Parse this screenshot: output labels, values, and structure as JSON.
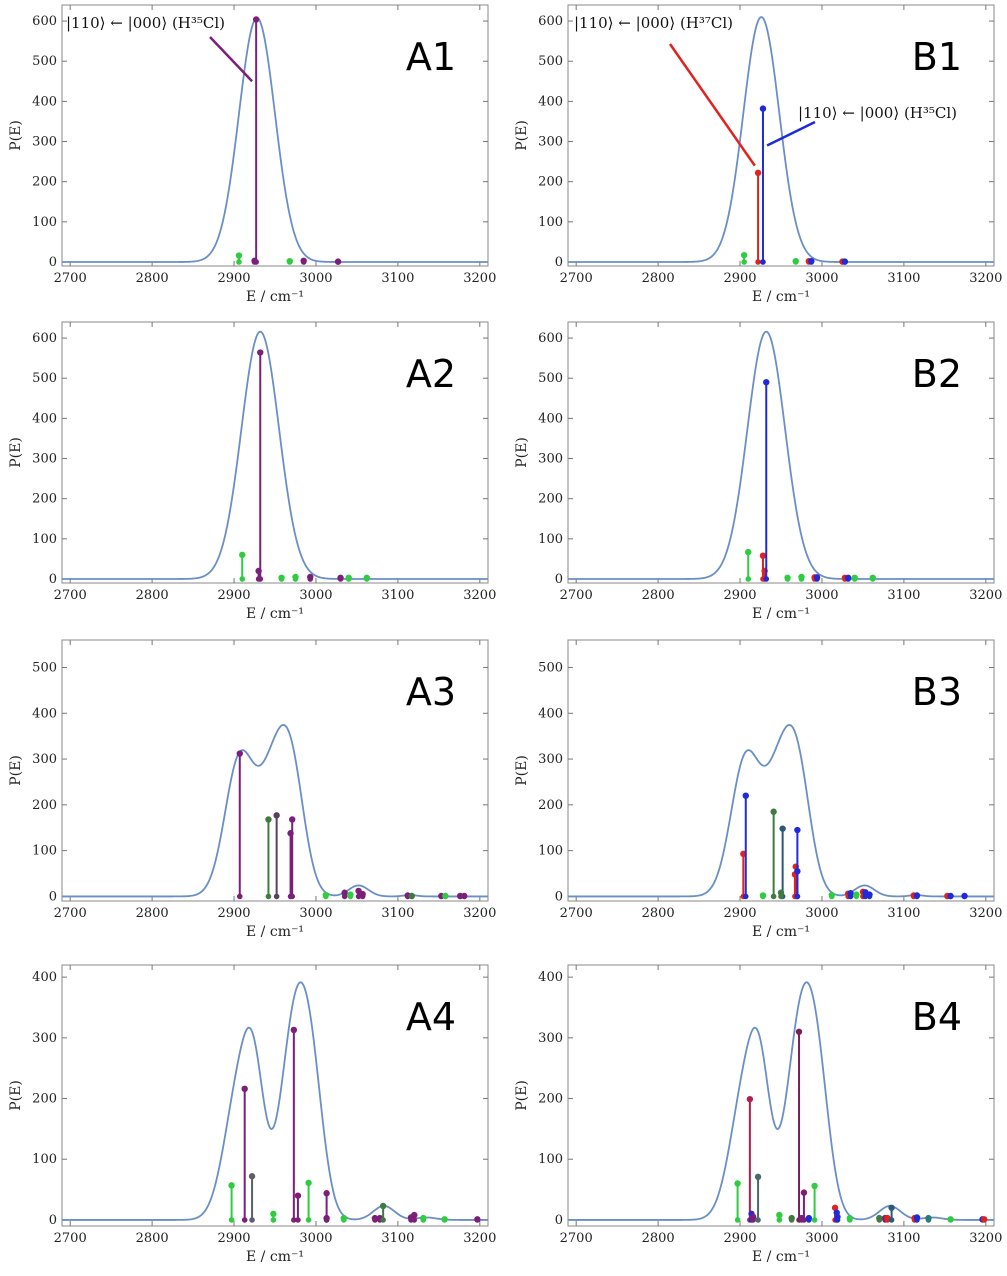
{
  "figure": {
    "description_free": true
  },
  "chart_data": [
    {
      "id": "A1",
      "type": "line",
      "title": "",
      "xlabel": "E / cm⁻¹",
      "ylabel": "P(E)",
      "xlim": [
        2690,
        3210
      ],
      "ylim": [
        -10,
        640
      ],
      "xticks": [
        2700,
        2800,
        2900,
        3000,
        3100,
        3200
      ],
      "yticks": [
        0,
        100,
        200,
        300,
        400,
        500,
        600
      ],
      "envelope": {
        "color": "#6a8fc6",
        "peaks": [
          {
            "center": 2928,
            "height": 608,
            "width": 22
          }
        ]
      },
      "sticks": [
        {
          "x": 2906,
          "y": 16,
          "color": "#2ecc40"
        },
        {
          "x": 2925,
          "y": 3,
          "color": "#7b1f7b"
        },
        {
          "x": 2927,
          "y": 604,
          "color": "#7b1f7b"
        },
        {
          "x": 2968,
          "y": 2,
          "color": "#2ecc40"
        },
        {
          "x": 2985,
          "y": 3,
          "color": "#7b1f7b"
        },
        {
          "x": 3027,
          "y": 1,
          "color": "#7b1f7b"
        }
      ],
      "annotations": [
        {
          "text": "|110⟩ ← |000⟩ (H³⁵Cl)",
          "color": "#7b1f7b",
          "point": [
            2922,
            450
          ]
        }
      ]
    },
    {
      "id": "B1",
      "type": "line",
      "title": "",
      "xlabel": "E / cm⁻¹",
      "ylabel": "P(E)",
      "xlim": [
        2690,
        3210
      ],
      "ylim": [
        -10,
        640
      ],
      "xticks": [
        2700,
        2800,
        2900,
        3000,
        3100,
        3200
      ],
      "yticks": [
        0,
        100,
        200,
        300,
        400,
        500,
        600
      ],
      "envelope": {
        "color": "#6a8fc6",
        "peaks": [
          {
            "center": 2926,
            "height": 610,
            "width": 22
          }
        ]
      },
      "sticks": [
        {
          "x": 2905,
          "y": 17,
          "color": "#2ecc40"
        },
        {
          "x": 2922,
          "y": 222,
          "color": "#e0231f"
        },
        {
          "x": 2928,
          "y": 382,
          "color": "#1f2bd6"
        },
        {
          "x": 2968,
          "y": 2,
          "color": "#2ecc40"
        },
        {
          "x": 2984,
          "y": 2,
          "color": "#e0231f"
        },
        {
          "x": 2987,
          "y": 2,
          "color": "#1f2bd6"
        },
        {
          "x": 3025,
          "y": 1,
          "color": "#e0231f"
        },
        {
          "x": 3028,
          "y": 1,
          "color": "#1f2bd6"
        }
      ],
      "annotations": [
        {
          "text": "|110⟩ ← |000⟩ (H³⁷Cl)",
          "color": "#e0231f",
          "point": [
            2918,
            240
          ]
        },
        {
          "text": "|110⟩ ← |000⟩ (H³⁵Cl)",
          "color": "#1f2bd6",
          "point": [
            2933,
            290
          ]
        }
      ]
    },
    {
      "id": "A2",
      "type": "line",
      "title": "",
      "xlabel": "E / cm⁻¹",
      "ylabel": "P(E)",
      "xlim": [
        2690,
        3210
      ],
      "ylim": [
        -10,
        640
      ],
      "xticks": [
        2700,
        2800,
        2900,
        3000,
        3100,
        3200
      ],
      "yticks": [
        0,
        100,
        200,
        300,
        400,
        500,
        600
      ],
      "envelope": {
        "color": "#6a8fc6",
        "peaks": [
          {
            "center": 2932,
            "height": 616,
            "width": 23
          }
        ]
      },
      "sticks": [
        {
          "x": 2910,
          "y": 60,
          "color": "#2ecc40"
        },
        {
          "x": 2930,
          "y": 20,
          "color": "#7b1f7b"
        },
        {
          "x": 2932,
          "y": 564,
          "color": "#7b1f7b"
        },
        {
          "x": 2958,
          "y": 3,
          "color": "#2ecc40"
        },
        {
          "x": 2975,
          "y": 5,
          "color": "#2ecc40"
        },
        {
          "x": 2993,
          "y": 5,
          "color": "#7b1f7b"
        },
        {
          "x": 3030,
          "y": 3,
          "color": "#7b1f7b"
        },
        {
          "x": 3040,
          "y": 3,
          "color": "#2ecc40"
        },
        {
          "x": 3062,
          "y": 3,
          "color": "#2ecc40"
        }
      ],
      "annotations": []
    },
    {
      "id": "B2",
      "type": "line",
      "title": "",
      "xlabel": "E / cm⁻¹",
      "ylabel": "P(E)",
      "xlim": [
        2690,
        3210
      ],
      "ylim": [
        -10,
        640
      ],
      "xticks": [
        2700,
        2800,
        2900,
        3000,
        3100,
        3200
      ],
      "yticks": [
        0,
        100,
        200,
        300,
        400,
        500,
        600
      ],
      "envelope": {
        "color": "#6a8fc6",
        "peaks": [
          {
            "center": 2932,
            "height": 616,
            "width": 23
          }
        ]
      },
      "sticks": [
        {
          "x": 2910,
          "y": 67,
          "color": "#2ecc40"
        },
        {
          "x": 2928,
          "y": 58,
          "color": "#e0231f"
        },
        {
          "x": 2930,
          "y": 20,
          "color": "#e0231f"
        },
        {
          "x": 2932,
          "y": 490,
          "color": "#1f2bd6"
        },
        {
          "x": 2958,
          "y": 3,
          "color": "#2ecc40"
        },
        {
          "x": 2975,
          "y": 5,
          "color": "#2ecc40"
        },
        {
          "x": 2991,
          "y": 4,
          "color": "#e0231f"
        },
        {
          "x": 2994,
          "y": 4,
          "color": "#1f2bd6"
        },
        {
          "x": 3028,
          "y": 3,
          "color": "#e0231f"
        },
        {
          "x": 3032,
          "y": 3,
          "color": "#1f2bd6"
        },
        {
          "x": 3040,
          "y": 3,
          "color": "#2ecc40"
        },
        {
          "x": 3062,
          "y": 3,
          "color": "#2ecc40"
        }
      ],
      "annotations": []
    },
    {
      "id": "A3",
      "type": "line",
      "title": "",
      "xlabel": "E / cm⁻¹",
      "ylabel": "P(E)",
      "xlim": [
        2690,
        3210
      ],
      "ylim": [
        -10,
        560
      ],
      "xticks": [
        2700,
        2800,
        2900,
        3000,
        3100,
        3200
      ],
      "yticks": [
        0,
        100,
        200,
        300,
        400,
        500
      ],
      "envelope": {
        "color": "#6a8fc6",
        "peaks": [
          {
            "center": 2907,
            "height": 300,
            "width": 18
          },
          {
            "center": 2946,
            "height": 220,
            "width": 17
          },
          {
            "center": 2970,
            "height": 260,
            "width": 16
          },
          {
            "center": 3052,
            "height": 24,
            "width": 12
          },
          {
            "center": 3115,
            "height": 3,
            "width": 8
          }
        ]
      },
      "sticks": [
        {
          "x": 2907,
          "y": 312,
          "color": "#7b1f7b"
        },
        {
          "x": 2942,
          "y": 168,
          "color": "#3f7a3f"
        },
        {
          "x": 2952,
          "y": 177,
          "color": "#5a4060"
        },
        {
          "x": 2969,
          "y": 138,
          "color": "#7b1f7b"
        },
        {
          "x": 2971,
          "y": 168,
          "color": "#7b1f7b"
        },
        {
          "x": 3012,
          "y": 3,
          "color": "#2ecc40"
        },
        {
          "x": 3035,
          "y": 8,
          "color": "#7b1f7b"
        },
        {
          "x": 3042,
          "y": 4,
          "color": "#2ecc40"
        },
        {
          "x": 3052,
          "y": 12,
          "color": "#7b1f7b"
        },
        {
          "x": 3057,
          "y": 5,
          "color": "#7b1f7b"
        },
        {
          "x": 3112,
          "y": 2,
          "color": "#7b1f7b"
        },
        {
          "x": 3117,
          "y": 1,
          "color": "#3f7a3f"
        },
        {
          "x": 3153,
          "y": 1,
          "color": "#7b1f7b"
        },
        {
          "x": 3158,
          "y": 1,
          "color": "#2ecc40"
        },
        {
          "x": 3176,
          "y": 1,
          "color": "#7b1f7b"
        },
        {
          "x": 3181,
          "y": 1,
          "color": "#7b1f7b"
        }
      ],
      "annotations": []
    },
    {
      "id": "B3",
      "type": "line",
      "title": "",
      "xlabel": "E / cm⁻¹",
      "ylabel": "P(E)",
      "xlim": [
        2690,
        3210
      ],
      "ylim": [
        -10,
        560
      ],
      "xticks": [
        2700,
        2800,
        2900,
        3000,
        3100,
        3200
      ],
      "yticks": [
        0,
        100,
        200,
        300,
        400,
        500
      ],
      "envelope": {
        "color": "#6a8fc6",
        "peaks": [
          {
            "center": 2907,
            "height": 300,
            "width": 18
          },
          {
            "center": 2946,
            "height": 220,
            "width": 17
          },
          {
            "center": 2970,
            "height": 260,
            "width": 16
          },
          {
            "center": 3052,
            "height": 24,
            "width": 12
          },
          {
            "center": 3115,
            "height": 3,
            "width": 8
          }
        ]
      },
      "sticks": [
        {
          "x": 2904,
          "y": 93,
          "color": "#e0231f"
        },
        {
          "x": 2907,
          "y": 220,
          "color": "#1f2bd6"
        },
        {
          "x": 2928,
          "y": 2,
          "color": "#2ecc40"
        },
        {
          "x": 2941,
          "y": 185,
          "color": "#3f7a3f"
        },
        {
          "x": 2952,
          "y": 148,
          "color": "#2a5a7a"
        },
        {
          "x": 2950,
          "y": 8,
          "color": "#3f7a3f"
        },
        {
          "x": 2967,
          "y": 48,
          "color": "#e0231f"
        },
        {
          "x": 2968,
          "y": 65,
          "color": "#e0231f"
        },
        {
          "x": 2970,
          "y": 145,
          "color": "#1f2bd6"
        },
        {
          "x": 2970,
          "y": 55,
          "color": "#1f2bd6"
        },
        {
          "x": 3012,
          "y": 3,
          "color": "#2ecc40"
        },
        {
          "x": 3032,
          "y": 6,
          "color": "#e0231f"
        },
        {
          "x": 3035,
          "y": 7,
          "color": "#1f2bd6"
        },
        {
          "x": 3042,
          "y": 4,
          "color": "#2ecc40"
        },
        {
          "x": 3050,
          "y": 10,
          "color": "#e0231f"
        },
        {
          "x": 3053,
          "y": 9,
          "color": "#1f2bd6"
        },
        {
          "x": 3058,
          "y": 4,
          "color": "#1f2bd6"
        },
        {
          "x": 3112,
          "y": 2,
          "color": "#e0231f"
        },
        {
          "x": 3116,
          "y": 2,
          "color": "#1f2bd6"
        },
        {
          "x": 3153,
          "y": 1,
          "color": "#e0231f"
        },
        {
          "x": 3157,
          "y": 1,
          "color": "#1f2bd6"
        },
        {
          "x": 3174,
          "y": 1,
          "color": "#1f2bd6"
        }
      ],
      "annotations": []
    },
    {
      "id": "A4",
      "type": "line",
      "title": "",
      "xlabel": "E / cm⁻¹",
      "ylabel": "P(E)",
      "xlim": [
        2690,
        3210
      ],
      "ylim": [
        -10,
        420
      ],
      "xticks": [
        2700,
        2800,
        2900,
        3000,
        3100,
        3200
      ],
      "yticks": [
        0,
        100,
        200,
        300,
        400
      ],
      "envelope": {
        "color": "#6a8fc6",
        "peaks": [
          {
            "center": 2906,
            "height": 210,
            "width": 18
          },
          {
            "center": 2925,
            "height": 170,
            "width": 13
          },
          {
            "center": 2973,
            "height": 300,
            "width": 17
          },
          {
            "center": 2995,
            "height": 190,
            "width": 15
          },
          {
            "center": 3083,
            "height": 23,
            "width": 13
          },
          {
            "center": 3135,
            "height": 4,
            "width": 12
          }
        ]
      },
      "sticks": [
        {
          "x": 2897,
          "y": 57,
          "color": "#2ecc40"
        },
        {
          "x": 2913,
          "y": 216,
          "color": "#7b1f7b"
        },
        {
          "x": 2922,
          "y": 72,
          "color": "#5a6068"
        },
        {
          "x": 2948,
          "y": 10,
          "color": "#2ecc40"
        },
        {
          "x": 2973,
          "y": 313,
          "color": "#7b1f7b"
        },
        {
          "x": 2978,
          "y": 40,
          "color": "#7b1f7b"
        },
        {
          "x": 2991,
          "y": 61,
          "color": "#2ecc40"
        },
        {
          "x": 3013,
          "y": 44,
          "color": "#7b1f7b"
        },
        {
          "x": 3013,
          "y": 3,
          "color": "#7b1f7b"
        },
        {
          "x": 3034,
          "y": 3,
          "color": "#2ecc40"
        },
        {
          "x": 3072,
          "y": 3,
          "color": "#7b1f7b"
        },
        {
          "x": 3078,
          "y": 3,
          "color": "#7b1f7b"
        },
        {
          "x": 3082,
          "y": 23,
          "color": "#3f7a3f"
        },
        {
          "x": 3116,
          "y": 4,
          "color": "#7b1f7b"
        },
        {
          "x": 3120,
          "y": 8,
          "color": "#7b1f7b"
        },
        {
          "x": 3131,
          "y": 3,
          "color": "#2ecc40"
        },
        {
          "x": 3157,
          "y": 1,
          "color": "#2ecc40"
        },
        {
          "x": 3197,
          "y": 1,
          "color": "#7b1f7b"
        }
      ],
      "annotations": []
    },
    {
      "id": "B4",
      "type": "line",
      "title": "",
      "xlabel": "E / cm⁻¹",
      "ylabel": "P(E)",
      "xlim": [
        2690,
        3210
      ],
      "ylim": [
        -10,
        420
      ],
      "xticks": [
        2700,
        2800,
        2900,
        3000,
        3100,
        3200
      ],
      "yticks": [
        0,
        100,
        200,
        300,
        400
      ],
      "envelope": {
        "color": "#6a8fc6",
        "peaks": [
          {
            "center": 2906,
            "height": 210,
            "width": 18
          },
          {
            "center": 2925,
            "height": 170,
            "width": 13
          },
          {
            "center": 2973,
            "height": 300,
            "width": 17
          },
          {
            "center": 2995,
            "height": 190,
            "width": 15
          },
          {
            "center": 3083,
            "height": 23,
            "width": 13
          },
          {
            "center": 3135,
            "height": 4,
            "width": 12
          }
        ]
      },
      "sticks": [
        {
          "x": 2897,
          "y": 60,
          "color": "#2ecc40"
        },
        {
          "x": 2912,
          "y": 199,
          "color": "#b01f4f"
        },
        {
          "x": 2914,
          "y": 10,
          "color": "#1f2bd6"
        },
        {
          "x": 2916,
          "y": 5,
          "color": "#7b1f7b"
        },
        {
          "x": 2922,
          "y": 71,
          "color": "#4a6a6a"
        },
        {
          "x": 2948,
          "y": 8,
          "color": "#2ecc40"
        },
        {
          "x": 2963,
          "y": 3,
          "color": "#3f7a3f"
        },
        {
          "x": 2972,
          "y": 310,
          "color": "#7b1f5a"
        },
        {
          "x": 2975,
          "y": 3,
          "color": "#7b1f7b"
        },
        {
          "x": 2978,
          "y": 45,
          "color": "#7b1f7b"
        },
        {
          "x": 2984,
          "y": 3,
          "color": "#1f2bd6"
        },
        {
          "x": 2991,
          "y": 56,
          "color": "#2ecc40"
        },
        {
          "x": 3016,
          "y": 20,
          "color": "#e0231f"
        },
        {
          "x": 3018,
          "y": 12,
          "color": "#1f2bd6"
        },
        {
          "x": 3019,
          "y": 5,
          "color": "#1f2bd6"
        },
        {
          "x": 3034,
          "y": 3,
          "color": "#2ecc40"
        },
        {
          "x": 3070,
          "y": 3,
          "color": "#3f7a3f"
        },
        {
          "x": 3077,
          "y": 3,
          "color": "#7b1f7b"
        },
        {
          "x": 3080,
          "y": 3,
          "color": "#e0231f"
        },
        {
          "x": 3085,
          "y": 20,
          "color": "#2a5a7a"
        },
        {
          "x": 3113,
          "y": 3,
          "color": "#e0231f"
        },
        {
          "x": 3116,
          "y": 4,
          "color": "#1f2bd6"
        },
        {
          "x": 3130,
          "y": 3,
          "color": "#2a7a7a"
        },
        {
          "x": 3157,
          "y": 1,
          "color": "#2ecc40"
        },
        {
          "x": 3196,
          "y": 1,
          "color": "#1f2bd6"
        },
        {
          "x": 3198,
          "y": 1,
          "color": "#e0231f"
        }
      ],
      "annotations": []
    }
  ]
}
